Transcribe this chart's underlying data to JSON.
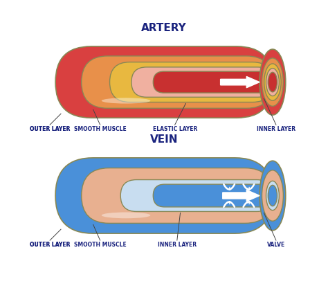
{
  "background_color": "#ffffff",
  "artery_title": "ARTERY",
  "vein_title": "VEIN",
  "artery_colors": {
    "outer": "#d94040",
    "outer_dark": "#c03030",
    "smooth_muscle": "#e8904a",
    "elastic": "#e8b840",
    "inner_tube": "#f0b0a0",
    "lumen": "#c83030",
    "highlight": "#f09090"
  },
  "vein_colors": {
    "outer": "#4a90d9",
    "outer_dark": "#3070b8",
    "smooth_muscle": "#e8b090",
    "elastic": "#f0c8a0",
    "inner_tube": "#c8ddf0",
    "lumen": "#4a90d9",
    "highlight": "#80c0f0"
  },
  "artery_labels": [
    "OUTER LAYER",
    "SMOOTH MUSCLE",
    "ELASTIC LAYER",
    "INNER LAYER"
  ],
  "vein_labels": [
    "OUTER LAYER",
    "SMOOTH MUSCLE",
    "INNER LAYER",
    "VALVE"
  ],
  "title_color": "#1a237e",
  "label_color": "#1a237e",
  "title_fontsize": 11,
  "label_fontsize": 5.5,
  "edge_color": "#888855"
}
